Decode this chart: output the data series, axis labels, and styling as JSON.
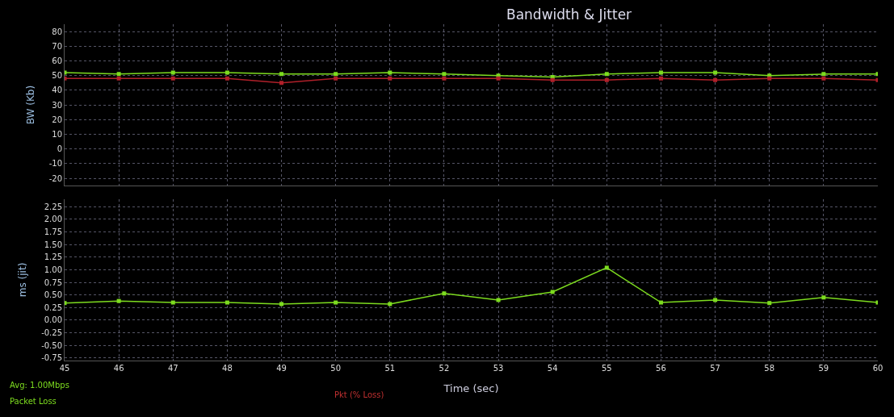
{
  "chart_data": [
    {
      "type": "line",
      "title": "Bandwidth & Jitter",
      "ylabel": "BW (Kb)",
      "x": [
        45,
        46,
        47,
        48,
        49,
        50,
        51,
        52,
        53,
        54,
        55,
        56,
        57,
        58,
        59,
        60
      ],
      "xlim": [
        45,
        60
      ],
      "ylim": [
        -25,
        85
      ],
      "yticks": [
        -20,
        -10,
        0,
        10,
        20,
        30,
        40,
        50,
        60,
        70,
        80
      ],
      "tick_labels": "y",
      "grid": true,
      "marker": "square",
      "line_style": "solid",
      "series": [
        {
          "color": "#7ddc1f",
          "values": [
            52,
            51,
            52,
            52,
            51,
            51,
            52,
            51,
            50,
            49,
            51,
            52,
            52,
            50,
            51,
            51
          ]
        },
        {
          "color": "#b0202a",
          "values": [
            48,
            48,
            48,
            48,
            45,
            48,
            48,
            48,
            48,
            47,
            47,
            48,
            47,
            48,
            48,
            47
          ]
        }
      ]
    },
    {
      "type": "line",
      "xlabel": "Time (sec)",
      "ylabel": "ms (jit)",
      "x": [
        45,
        46,
        47,
        48,
        49,
        50,
        51,
        52,
        53,
        54,
        55,
        56,
        57,
        58,
        59,
        60
      ],
      "xlim": [
        45,
        60
      ],
      "ylim": [
        -0.8,
        2.4
      ],
      "xticks": [
        45,
        46,
        47,
        48,
        49,
        50,
        51,
        52,
        53,
        54,
        55,
        56,
        57,
        58,
        59,
        60
      ],
      "yticks": [
        {
          "value": -0.75,
          "label": "-0.75"
        },
        {
          "value": -0.5,
          "label": "-0.50"
        },
        {
          "value": -0.25,
          "label": "-0.25"
        },
        {
          "value": 0,
          "label": "0.00"
        },
        {
          "value": 0.25,
          "label": "0.25"
        },
        {
          "value": 0.5,
          "label": "0.50"
        },
        {
          "value": 0.75,
          "label": "0.75"
        },
        {
          "value": 1,
          "label": "1.00"
        },
        {
          "value": 1.25,
          "label": "1.25"
        },
        {
          "value": 1.5,
          "label": "1.50"
        },
        {
          "value": 1.75,
          "label": "1.75"
        },
        {
          "value": 2,
          "label": "2.00"
        },
        {
          "value": 2.25,
          "label": "2.25"
        }
      ],
      "grid": true,
      "marker": "square",
      "line_style": "solid",
      "series": [
        {
          "color": "#7ddc1f",
          "values": [
            0.34,
            0.38,
            0.35,
            0.35,
            0.32,
            0.35,
            0.32,
            0.53,
            0.4,
            0.56,
            1.04,
            0.35,
            0.4,
            0.34,
            0.45,
            0.35
          ]
        }
      ],
      "annotations": [
        "Avg: 1.00Mbps",
        "Packet Loss",
        "Pkt (% Loss)"
      ]
    }
  ]
}
